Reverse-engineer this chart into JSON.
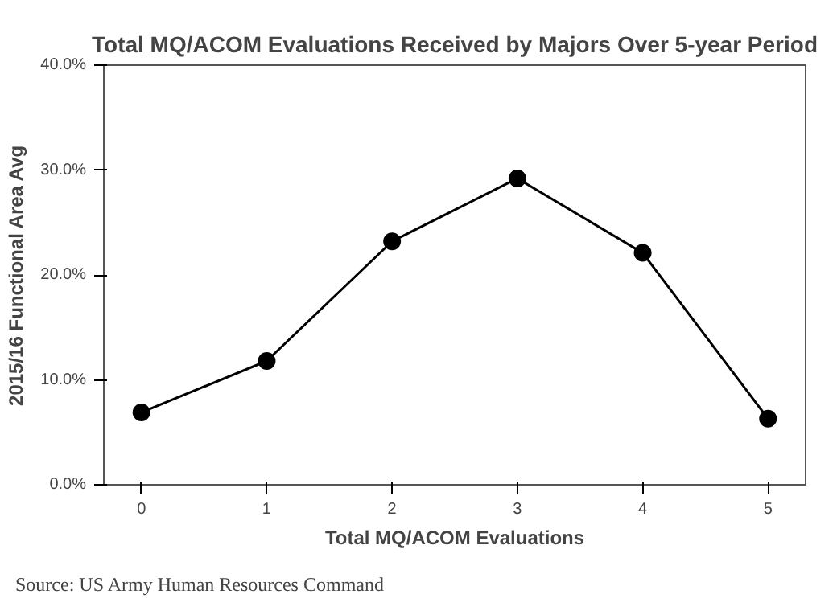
{
  "chart_data": {
    "type": "line",
    "title": "Total MQ/ACOM Evaluations Received by Majors Over 5-year Period",
    "xlabel": "Total MQ/ACOM Evaluations",
    "ylabel": "2015/16 Functional Area Avg",
    "x": [
      0,
      1,
      2,
      3,
      4,
      5
    ],
    "series": [
      {
        "color": "#000000",
        "values": [
          6.9,
          11.8,
          23.2,
          29.2,
          22.1,
          6.3
        ]
      }
    ],
    "xlim": [
      -0.3,
      5.3
    ],
    "xticks": [
      0,
      1,
      2,
      3,
      4,
      5
    ],
    "ylim": [
      0,
      40
    ],
    "yticks": [
      {
        "value": 0,
        "label": "0.0%"
      },
      {
        "value": 10,
        "label": "10.0%"
      },
      {
        "value": 20,
        "label": "20.0%"
      },
      {
        "value": 30,
        "label": "30.0%"
      },
      {
        "value": 40,
        "label": "40.0%"
      }
    ],
    "marker": "circle",
    "line_style": "solid",
    "grid": false,
    "annotations": [
      "Source: US Army Human Resources Command"
    ]
  }
}
